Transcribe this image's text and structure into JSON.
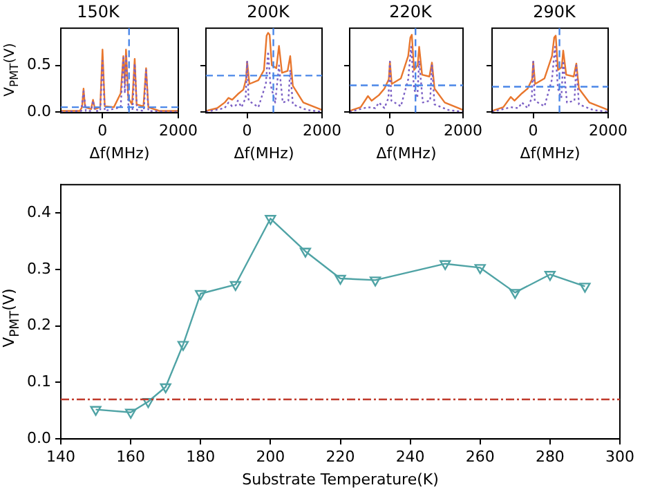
{
  "chart_data": [
    {
      "type": "line",
      "title": "150K",
      "xlabel": "Δf(MHz)",
      "ylabel": "V$_{PMT}$(V)",
      "marker": "none",
      "xlim": [
        -1100,
        2000
      ],
      "xticks": [
        0,
        2000
      ],
      "ylim": [
        -0.01,
        0.9
      ],
      "yticks": [
        {
          "value": 0,
          "label": "0.0"
        },
        {
          "value": 0.5,
          "label": "0.5"
        }
      ],
      "series": [
        {
          "color": "#e8762d",
          "line_style": "solid",
          "x": [
            -1100,
            -600,
            -540,
            -500,
            -460,
            -300,
            -250,
            -200,
            -60,
            0,
            60,
            300,
            480,
            550,
            590,
            620,
            680,
            780,
            850,
            900,
            1080,
            1150,
            1210,
            1500,
            2000
          ],
          "values": [
            0.01,
            0.01,
            0.05,
            0.25,
            0.05,
            0.03,
            0.13,
            0.03,
            0.05,
            0.67,
            0.06,
            0.05,
            0.2,
            0.6,
            0.3,
            0.67,
            0.15,
            0.08,
            0.57,
            0.08,
            0.06,
            0.47,
            0.05,
            0.01,
            0.01
          ]
        },
        {
          "color": "#7b5fc4",
          "line_style": "dotted",
          "x": [
            -1100,
            -560,
            -500,
            -440,
            -300,
            -250,
            -200,
            -60,
            0,
            60,
            480,
            550,
            590,
            620,
            690,
            790,
            850,
            910,
            1090,
            1150,
            1210,
            2000
          ],
          "values": [
            0,
            0.01,
            0.22,
            0.01,
            0.01,
            0.12,
            0.01,
            0.01,
            0.55,
            0.01,
            0.05,
            0.58,
            0.2,
            0.6,
            0.03,
            0.02,
            0.52,
            0.02,
            0.01,
            0.45,
            0.01,
            0
          ]
        }
      ],
      "ref_lines": [
        {
          "axis": "x",
          "value": 700,
          "color": "#4a86e8",
          "line_style": "dashed"
        },
        {
          "axis": "y",
          "value": 0.05,
          "color": "#4a86e8",
          "line_style": "dashed"
        }
      ]
    },
    {
      "type": "line",
      "title": "200K",
      "xlabel": "Δf(MHz)",
      "marker": "none",
      "tick_labels": "x",
      "xlim": [
        -1100,
        2000
      ],
      "xticks": [
        0,
        2000
      ],
      "ylim": [
        -0.01,
        0.9
      ],
      "yticks": [
        {
          "value": 0,
          "label": null
        },
        {
          "value": 0.5,
          "label": null
        }
      ],
      "series": [
        {
          "color": "#e8762d",
          "line_style": "solid",
          "x": [
            -1100,
            -800,
            -600,
            -500,
            -400,
            -250,
            -100,
            -30,
            0,
            60,
            300,
            450,
            520,
            560,
            600,
            660,
            780,
            850,
            930,
            1080,
            1150,
            1220,
            1500,
            2000
          ],
          "values": [
            0.01,
            0.04,
            0.1,
            0.15,
            0.13,
            0.19,
            0.24,
            0.35,
            0.54,
            0.3,
            0.34,
            0.45,
            0.82,
            0.85,
            0.83,
            0.5,
            0.47,
            0.71,
            0.42,
            0.44,
            0.6,
            0.28,
            0.1,
            0.02
          ]
        },
        {
          "color": "#7b5fc4",
          "line_style": "dotted",
          "x": [
            -1100,
            -600,
            -500,
            -400,
            -300,
            -250,
            -150,
            -40,
            0,
            40,
            300,
            500,
            560,
            620,
            750,
            850,
            950,
            1100,
            1150,
            1220,
            1600,
            2000
          ],
          "values": [
            0,
            0.04,
            0.1,
            0.06,
            0.07,
            0.12,
            0.05,
            0.15,
            0.54,
            0.12,
            0.05,
            0.3,
            0.65,
            0.3,
            0.1,
            0.5,
            0.1,
            0.12,
            0.45,
            0.08,
            0.02,
            0
          ]
        }
      ],
      "ref_lines": [
        {
          "axis": "x",
          "value": 700,
          "color": "#4a86e8",
          "line_style": "dashed"
        },
        {
          "axis": "y",
          "value": 0.39,
          "color": "#4a86e8",
          "line_style": "dashed"
        }
      ]
    },
    {
      "type": "line",
      "title": "220K",
      "xlabel": "Δf(MHz)",
      "marker": "none",
      "tick_labels": "x",
      "xlim": [
        -1100,
        2000
      ],
      "xticks": [
        0,
        2000
      ],
      "ylim": [
        -0.01,
        0.9
      ],
      "yticks": [
        {
          "value": 0,
          "label": null
        },
        {
          "value": 0.5,
          "label": null
        }
      ],
      "series": [
        {
          "color": "#e8762d",
          "line_style": "solid",
          "x": [
            -1100,
            -800,
            -600,
            -500,
            -300,
            -150,
            -30,
            0,
            50,
            300,
            500,
            560,
            600,
            660,
            760,
            800,
            880,
            1080,
            1150,
            1220,
            1500,
            2000
          ],
          "values": [
            0.01,
            0.05,
            0.17,
            0.12,
            0.18,
            0.25,
            0.35,
            0.54,
            0.3,
            0.36,
            0.6,
            0.8,
            0.83,
            0.45,
            0.5,
            0.7,
            0.4,
            0.38,
            0.53,
            0.25,
            0.1,
            0.02
          ]
        },
        {
          "color": "#7b5fc4",
          "line_style": "dotted",
          "x": [
            -1100,
            -600,
            -400,
            -300,
            -150,
            -40,
            0,
            40,
            300,
            500,
            580,
            660,
            750,
            800,
            900,
            1100,
            1150,
            1220,
            1600,
            2000
          ],
          "values": [
            0,
            0.05,
            0.04,
            0.1,
            0.04,
            0.15,
            0.54,
            0.12,
            0.06,
            0.35,
            0.7,
            0.25,
            0.15,
            0.55,
            0.1,
            0.12,
            0.5,
            0.08,
            0.02,
            0
          ]
        }
      ],
      "ref_lines": [
        {
          "axis": "x",
          "value": 700,
          "color": "#4a86e8",
          "line_style": "dashed"
        },
        {
          "axis": "y",
          "value": 0.285,
          "color": "#4a86e8",
          "line_style": "dashed"
        }
      ]
    },
    {
      "type": "line",
      "title": "290K",
      "xlabel": "Δf(MHz)",
      "marker": "none",
      "tick_labels": "x",
      "xlim": [
        -1100,
        2000
      ],
      "xticks": [
        0,
        2000
      ],
      "ylim": [
        -0.01,
        0.9
      ],
      "yticks": [
        {
          "value": 0,
          "label": null
        },
        {
          "value": 0.5,
          "label": null
        }
      ],
      "series": [
        {
          "color": "#e8762d",
          "line_style": "solid",
          "x": [
            -1100,
            -800,
            -600,
            -500,
            -300,
            -150,
            -30,
            0,
            50,
            300,
            500,
            560,
            600,
            660,
            760,
            800,
            880,
            1080,
            1150,
            1220,
            1500,
            2000
          ],
          "values": [
            0.01,
            0.05,
            0.16,
            0.12,
            0.2,
            0.25,
            0.35,
            0.54,
            0.3,
            0.36,
            0.6,
            0.8,
            0.82,
            0.45,
            0.48,
            0.66,
            0.4,
            0.38,
            0.52,
            0.25,
            0.1,
            0.02
          ]
        },
        {
          "color": "#7b5fc4",
          "line_style": "dotted",
          "x": [
            -1100,
            -600,
            -400,
            -300,
            -150,
            -40,
            0,
            40,
            300,
            500,
            580,
            660,
            750,
            800,
            900,
            1100,
            1150,
            1220,
            1600,
            2000
          ],
          "values": [
            0,
            0.05,
            0.04,
            0.1,
            0.04,
            0.15,
            0.54,
            0.12,
            0.06,
            0.35,
            0.7,
            0.25,
            0.15,
            0.55,
            0.1,
            0.12,
            0.5,
            0.08,
            0.02,
            0
          ]
        }
      ],
      "ref_lines": [
        {
          "axis": "x",
          "value": 700,
          "color": "#4a86e8",
          "line_style": "dashed"
        },
        {
          "axis": "y",
          "value": 0.27,
          "color": "#4a86e8",
          "line_style": "dashed"
        }
      ]
    },
    {
      "type": "line",
      "xlabel": "Substrate Temperature(K)",
      "ylabel": "V$_{PMT}$(V)",
      "marker": "triangle",
      "xlim": [
        140,
        300
      ],
      "xticks": [
        140,
        160,
        180,
        200,
        220,
        240,
        260,
        280,
        300
      ],
      "ylim": [
        0,
        0.45
      ],
      "yticks": [
        {
          "value": 0,
          "label": "0.0"
        },
        {
          "value": 0.1,
          "label": "0.1"
        },
        {
          "value": 0.2,
          "label": "0.2"
        },
        {
          "value": 0.3,
          "label": "0.3"
        },
        {
          "value": 0.4,
          "label": "0.4"
        }
      ],
      "x": [
        150,
        160,
        165,
        170,
        175,
        180,
        190,
        200,
        210,
        220,
        230,
        250,
        260,
        270,
        280,
        290
      ],
      "series": [
        {
          "color": "#4fa3a5",
          "values": [
            0.052,
            0.047,
            0.066,
            0.092,
            0.167,
            0.257,
            0.273,
            0.39,
            0.332,
            0.284,
            0.281,
            0.31,
            0.303,
            0.259,
            0.291,
            0.27
          ]
        }
      ],
      "ref_lines": [
        {
          "axis": "y",
          "value": 0.07,
          "color": "#c0392b",
          "line_style": "dashdot"
        }
      ]
    }
  ]
}
